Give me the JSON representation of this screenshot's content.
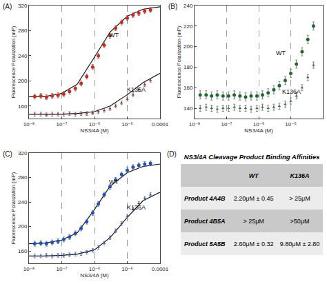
{
  "chart_data": [
    {
      "type": "scatter",
      "title": "(A)",
      "x_label": "NS3/4A (M)",
      "y_label": "Fluorescence Polarization (mP)",
      "log": "x",
      "grid": true,
      "xlim": [
        1e-08,
        0.0001
      ],
      "xticks": [
        {
          "value": 1e-08,
          "label": "10⁻⁸"
        },
        {
          "value": 1e-07,
          "label": "10⁻⁷"
        },
        {
          "value": 1e-06,
          "label": "10⁻⁶"
        },
        {
          "value": 1e-05,
          "label": "10⁻⁵"
        },
        0.0001
      ],
      "ylim": [
        140,
        320
      ],
      "yticks": [
        160,
        200,
        240,
        280,
        320
      ],
      "series": [
        {
          "name": "WT",
          "color": "#d8261c",
          "marker": "circle",
          "x": [
            1.5e-08,
            2.3e-08,
            3.4e-08,
            5.1e-08,
            7.7e-08,
            1.15e-07,
            1.73e-07,
            2.6e-07,
            3.9e-07,
            5.8e-07,
            8.8e-07,
            1.31e-06,
            1.97e-06,
            2.96e-06,
            4.4e-06,
            6.7e-06,
            1e-05,
            1.5e-05,
            2.25e-05,
            3.4e-05,
            5.1e-05
          ],
          "values": [
            175,
            176,
            174,
            176,
            177,
            179,
            183,
            188,
            196,
            207,
            222,
            240,
            257,
            272,
            284,
            293,
            300,
            305,
            308,
            311,
            313
          ],
          "error": [
            4,
            4,
            4,
            4,
            4,
            4,
            4,
            4,
            4,
            4,
            4,
            4,
            4,
            4,
            4,
            4,
            4,
            4,
            4,
            4,
            4
          ],
          "fit": {
            "x": [
              1e-08,
              3e-08,
              1e-07,
              3e-07,
              1e-06,
              3e-06,
              1e-05,
              3e-05,
              0.0001
            ],
            "values": [
              175,
              175,
              180,
              195,
              238,
              278,
              303,
              314,
              318
            ]
          }
        },
        {
          "name": "K136A",
          "color": "#8a2f2a",
          "marker": "triangle-up",
          "x": [
            1.5e-08,
            2.3e-08,
            3.4e-08,
            5.1e-08,
            7.7e-08,
            1.15e-07,
            1.73e-07,
            2.6e-07,
            3.9e-07,
            5.8e-07,
            8.8e-07,
            1.31e-06,
            1.97e-06,
            2.96e-06,
            4.4e-06,
            6.7e-06,
            1e-05,
            1.5e-05,
            2.25e-05,
            3.4e-05,
            5.1e-05
          ],
          "values": [
            147,
            147,
            146,
            147,
            147,
            147,
            148,
            147,
            148,
            148,
            149,
            151,
            153,
            156,
            160,
            165,
            171,
            178,
            186,
            194,
            201
          ],
          "error": [
            3,
            3,
            3,
            3,
            3,
            3,
            3,
            3,
            3,
            3,
            3,
            3,
            3,
            3,
            3,
            3,
            3,
            3,
            3,
            3,
            3
          ],
          "fit": {
            "x": [
              1e-08,
              3e-08,
              1e-07,
              3e-07,
              1e-06,
              3e-06,
              1e-05,
              3e-05,
              0.0001
            ],
            "values": [
              147,
              147,
              147,
              148,
              151,
              160,
              178,
              197,
              212
            ]
          }
        }
      ]
    },
    {
      "type": "scatter",
      "title": "(B)",
      "x_label": "NS3/4A (M)",
      "y_label": "Fluorescence Polarization (mP)",
      "log": "x",
      "grid": true,
      "xlim": [
        1e-08,
        0.0001
      ],
      "xticks": [
        {
          "value": 1e-08,
          "label": "10⁻⁸"
        },
        {
          "value": 1e-07,
          "label": "10⁻⁷"
        },
        {
          "value": 1e-06,
          "label": "10⁻⁶"
        },
        {
          "value": 1e-05,
          "label": "10⁻⁵"
        },
        0.0001
      ],
      "ylim": [
        130,
        240
      ],
      "yticks": [
        140,
        160,
        180,
        200,
        220,
        240
      ],
      "series": [
        {
          "name": "WT",
          "color": "#1d6b2b",
          "marker": "circle",
          "x": [
            1.5e-08,
            2.3e-08,
            3.4e-08,
            5.1e-08,
            7.7e-08,
            1.15e-07,
            1.73e-07,
            2.6e-07,
            3.9e-07,
            5.8e-07,
            8.8e-07,
            1.31e-06,
            1.97e-06,
            2.96e-06,
            4.4e-06,
            6.7e-06,
            1e-05,
            1.5e-05,
            2.25e-05,
            3.4e-05,
            5.1e-05
          ],
          "values": [
            153,
            153,
            152,
            153,
            152,
            152,
            153,
            152,
            151,
            152,
            152,
            153,
            155,
            158,
            162,
            167,
            174,
            183,
            195,
            207,
            220
          ],
          "error": [
            4,
            4,
            4,
            4,
            4,
            4,
            4,
            4,
            4,
            4,
            4,
            4,
            4,
            4,
            4,
            4,
            4,
            4,
            4,
            4,
            4
          ]
        },
        {
          "name": "K136A",
          "color": "#2f7a3a",
          "marker": "triangle-up",
          "x": [
            1.5e-08,
            2.3e-08,
            3.4e-08,
            5.1e-08,
            7.7e-08,
            1.15e-07,
            1.73e-07,
            2.6e-07,
            3.9e-07,
            5.8e-07,
            8.8e-07,
            1.31e-06,
            1.97e-06,
            2.96e-06,
            4.4e-06,
            6.7e-06,
            1e-05,
            1.5e-05,
            2.25e-05,
            3.4e-05,
            5.1e-05
          ],
          "values": [
            140,
            141,
            140,
            139,
            140,
            140,
            141,
            140,
            140,
            139,
            140,
            141,
            140,
            141,
            142,
            144,
            147,
            152,
            160,
            170,
            182
          ],
          "error": [
            3,
            3,
            3,
            3,
            3,
            3,
            3,
            3,
            3,
            3,
            3,
            3,
            3,
            3,
            3,
            3,
            3,
            3,
            3,
            3,
            3
          ]
        }
      ]
    },
    {
      "type": "scatter",
      "title": "(C)",
      "x_label": "NS3/4A (M)",
      "y_label": "Fluorescence Polarization (mP)",
      "log": "x",
      "grid": true,
      "xlim": [
        1e-08,
        0.0001
      ],
      "xticks": [
        {
          "value": 1e-08,
          "label": "10⁻⁸"
        },
        {
          "value": 1e-07,
          "label": "10⁻⁷"
        },
        {
          "value": 1e-06,
          "label": "10⁻⁶"
        },
        {
          "value": 1e-05,
          "label": "10⁻⁵"
        },
        0.0001
      ],
      "ylim": [
        140,
        320
      ],
      "yticks": [
        160,
        200,
        240,
        280,
        320
      ],
      "series": [
        {
          "name": "WT",
          "color": "#1f4fc4",
          "marker": "circle",
          "x": [
            1.5e-08,
            2.3e-08,
            3.4e-08,
            5.1e-08,
            7.7e-08,
            1.15e-07,
            1.73e-07,
            2.6e-07,
            3.9e-07,
            5.8e-07,
            8.8e-07,
            1.31e-06,
            1.97e-06,
            2.96e-06,
            4.4e-06,
            6.7e-06,
            1e-05,
            1.5e-05,
            2.25e-05,
            3.4e-05,
            5.1e-05
          ],
          "values": [
            172,
            173,
            172,
            174,
            176,
            179,
            183,
            189,
            197,
            208,
            222,
            237,
            252,
            265,
            276,
            285,
            292,
            297,
            300,
            302,
            303
          ],
          "error": [
            4,
            4,
            4,
            4,
            4,
            4,
            4,
            4,
            4,
            4,
            4,
            4,
            4,
            4,
            4,
            4,
            4,
            4,
            4,
            4,
            4
          ],
          "fit": {
            "x": [
              1e-08,
              3e-08,
              1e-07,
              3e-07,
              1e-06,
              3e-06,
              1e-05,
              3e-05,
              0.0001
            ],
            "values": [
              172,
              173,
              178,
              190,
              228,
              266,
              288,
              298,
              302
            ]
          }
        },
        {
          "name": "K136A",
          "color": "#2a5ab8",
          "marker": "triangle-up",
          "x": [
            1.5e-08,
            2.3e-08,
            3.4e-08,
            5.1e-08,
            7.7e-08,
            1.15e-07,
            1.73e-07,
            2.6e-07,
            3.9e-07,
            5.8e-07,
            8.8e-07,
            1.31e-06,
            1.97e-06,
            2.96e-06,
            4.4e-06,
            6.7e-06,
            1e-05,
            1.5e-05,
            2.25e-05,
            3.4e-05,
            5.1e-05
          ],
          "values": [
            152,
            152,
            153,
            152,
            153,
            153,
            154,
            155,
            156,
            158,
            161,
            166,
            173,
            182,
            193,
            205,
            217,
            228,
            238,
            246,
            252
          ],
          "error": [
            3,
            3,
            3,
            3,
            3,
            3,
            3,
            3,
            3,
            3,
            3,
            3,
            3,
            3,
            3,
            3,
            3,
            3,
            3,
            3,
            3
          ],
          "fit": {
            "x": [
              1e-08,
              3e-08,
              1e-07,
              3e-07,
              1e-06,
              3e-06,
              1e-05,
              3e-05,
              0.0001
            ],
            "values": [
              152,
              152,
              153,
              155,
              162,
              182,
              215,
              242,
              256
            ]
          }
        }
      ]
    }
  ],
  "table": {
    "label": "(D)",
    "title": "NS3/4A Cleavage Product Binding Affinities",
    "header": [
      "WT",
      "K136A"
    ],
    "rows": [
      [
        "Product 4A4B",
        "2.20μM ± 0.45",
        "> 25μM"
      ],
      [
        "Product 4B5A",
        "> 25μM",
        ">50μM"
      ],
      [
        "Product 5A5B",
        "2.60μM ± 0.32",
        "9.80μM ± 2.80"
      ]
    ]
  }
}
